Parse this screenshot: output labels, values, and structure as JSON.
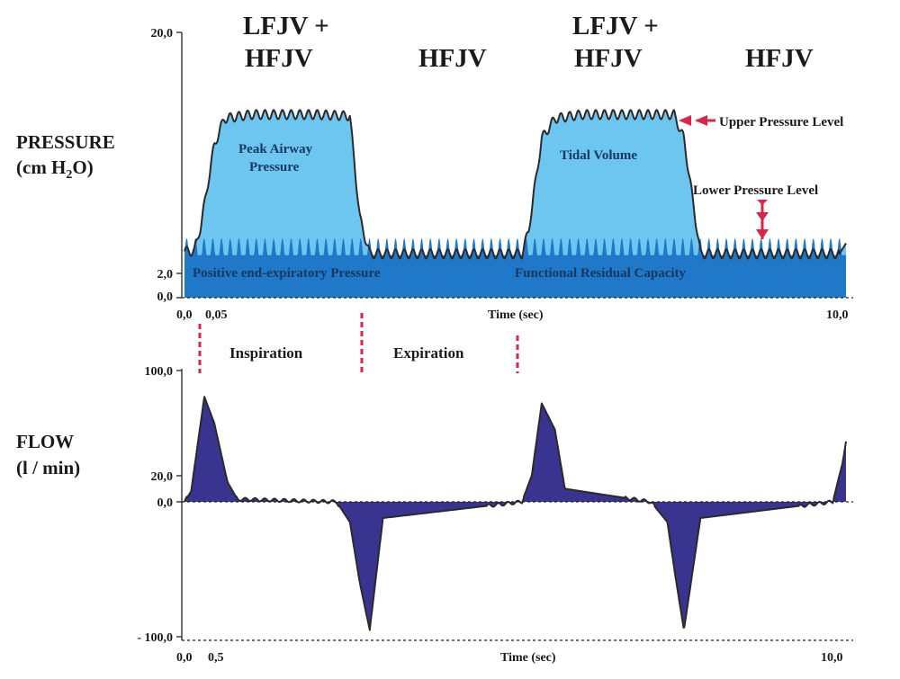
{
  "headers": [
    "LFJV +\nHFJV",
    "HFJV",
    "LFJV +\nHFJV",
    "HFJV"
  ],
  "colors": {
    "peep": "#1f78c8",
    "peak": "#6cc6f0",
    "flow_fill": "#38348f",
    "marker": "#d8254a",
    "trace": "#2a2a2a"
  },
  "chart_data": [
    {
      "type": "area",
      "ylabel": "PRESSURE",
      "ylabel_unit": "(cm H2O)",
      "xlabel": "Time (sec)",
      "y_ticks": [
        "20,0",
        "2,0",
        "0,0"
      ],
      "x_ticks": [
        "0,0",
        "0,05",
        "10,0"
      ],
      "x_range": [
        0,
        10
      ],
      "ylim": [
        0,
        20
      ],
      "baseline_pressure": 2,
      "series": [
        {
          "x": [
            0.0,
            0.15,
            0.25,
            0.45,
            0.6,
            1.0,
            2.0,
            2.5,
            2.65,
            2.8,
            4.0,
            5.1,
            5.2,
            5.4,
            5.6,
            6.0,
            7.4,
            7.55,
            7.8,
            9.9,
            10.05,
            10.15
          ],
          "y": [
            3.5,
            3.5,
            5.5,
            11.5,
            13.5,
            13.8,
            13.8,
            13.7,
            6.0,
            3.3,
            3.3,
            3.3,
            5.0,
            12.0,
            13.5,
            13.8,
            13.8,
            12.0,
            3.3,
            3.3,
            4.5,
            7.0
          ]
        }
      ],
      "annotations": {
        "peak_airway": "Peak Airway\nPressure",
        "tidal_volume": "Tidal Volume",
        "upper_level": "Upper Pressure Level",
        "lower_level": "Lower  Pressure Level",
        "peep": "Positive  end-expiratory Pressure",
        "frc": "Functional Residual Capacity"
      }
    },
    {
      "type": "area",
      "ylabel": "FLOW",
      "ylabel_unit": "(l / min)",
      "xlabel": "Time (sec)",
      "y_ticks": [
        "100,0",
        "20,0",
        "0,0",
        "- 100,0"
      ],
      "x_ticks": [
        "0,0",
        "0,5",
        "10,0"
      ],
      "x_range": [
        0,
        10
      ],
      "ylim": [
        -100,
        100
      ],
      "series": [
        {
          "x": [
            0.0,
            0.1,
            0.3,
            0.45,
            0.65,
            0.8,
            2.3,
            2.5,
            2.65,
            2.8,
            3.0,
            5.1,
            5.25,
            5.4,
            5.6,
            5.75,
            7.05,
            7.3,
            7.42,
            7.55,
            7.8,
            9.8,
            9.95,
            10.1
          ],
          "y": [
            0,
            8,
            80,
            60,
            15,
            2,
            0,
            -15,
            -60,
            -95,
            -12,
            0,
            20,
            75,
            55,
            10,
            0,
            -15,
            -55,
            -95,
            -12,
            0,
            30,
            78
          ]
        }
      ],
      "phases": {
        "inspiration": "Inspiration",
        "expiration": "Expiration"
      }
    }
  ]
}
